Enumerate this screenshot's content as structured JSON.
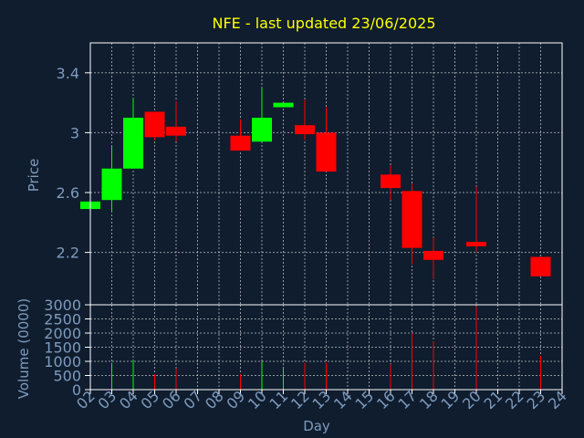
{
  "colors": {
    "background": "#0f1d2e",
    "title": "#ffff00",
    "axis_text": "#7f9bbf",
    "frame": "#ffffff",
    "grid": "#ffffff",
    "up": "#00ff00",
    "down": "#ff0000"
  },
  "chart_data": [
    {
      "type": "candlestick",
      "title": "NFE - last updated 23/06/2025",
      "ylabel": "Price",
      "ylim": [
        1.85,
        3.6
      ],
      "yticks": [
        "2.2",
        "2.6",
        "3",
        "3.4"
      ],
      "ytick_values": [
        2.2,
        2.6,
        3.0,
        3.4
      ],
      "grid": true,
      "candles": [
        {
          "x": "02",
          "open": 2.49,
          "close": 2.54,
          "high": 2.54,
          "low": 2.49
        },
        {
          "x": "03",
          "open": 2.55,
          "close": 2.76,
          "high": 2.91,
          "low": 2.47
        },
        {
          "x": "04",
          "open": 2.76,
          "close": 3.1,
          "high": 3.23,
          "low": 2.76
        },
        {
          "x": "05",
          "open": 3.14,
          "close": 2.97,
          "high": 3.14,
          "low": 2.95
        },
        {
          "x": "06",
          "open": 3.04,
          "close": 2.98,
          "high": 3.21,
          "low": 2.94
        },
        {
          "x": "09",
          "open": 2.98,
          "close": 2.88,
          "high": 3.09,
          "low": 2.88
        },
        {
          "x": "10",
          "open": 2.94,
          "close": 3.1,
          "high": 3.3,
          "low": 2.94
        },
        {
          "x": "11",
          "open": 3.17,
          "close": 3.2,
          "high": 3.21,
          "low": 3.17
        },
        {
          "x": "12",
          "open": 3.05,
          "close": 2.99,
          "high": 3.22,
          "low": 2.95
        },
        {
          "x": "13",
          "open": 3.0,
          "close": 2.74,
          "high": 3.17,
          "low": 2.74
        },
        {
          "x": "16",
          "open": 2.72,
          "close": 2.63,
          "high": 2.78,
          "low": 2.55
        },
        {
          "x": "17",
          "open": 2.61,
          "close": 2.23,
          "high": 2.66,
          "low": 2.12
        },
        {
          "x": "18",
          "open": 2.21,
          "close": 2.15,
          "high": 2.3,
          "low": 2.02
        },
        {
          "x": "20",
          "open": 2.27,
          "close": 2.24,
          "high": 2.64,
          "low": 2.2
        },
        {
          "x": "23",
          "open": 2.17,
          "close": 2.04,
          "high": 2.17,
          "low": 2.04
        }
      ]
    },
    {
      "type": "bar",
      "ylabel": "Volume (0000)",
      "xlabel": "Day",
      "ylim": [
        0,
        3000
      ],
      "yticks": [
        "0",
        "500",
        "1000",
        "1500",
        "2000",
        "2500",
        "3000"
      ],
      "ytick_values": [
        0,
        500,
        1000,
        1500,
        2000,
        2500,
        3000
      ],
      "grid": true,
      "categories": [
        "02",
        "03",
        "04",
        "05",
        "06",
        "07",
        "08",
        "09",
        "10",
        "11",
        "12",
        "13",
        "14",
        "15",
        "16",
        "17",
        "18",
        "19",
        "20",
        "21",
        "22",
        "23",
        "24"
      ],
      "bars": [
        {
          "x": "02",
          "value": 100,
          "dir": "up"
        },
        {
          "x": "03",
          "value": 950,
          "dir": "up"
        },
        {
          "x": "04",
          "value": 1050,
          "dir": "up"
        },
        {
          "x": "05",
          "value": 550,
          "dir": "down"
        },
        {
          "x": "06",
          "value": 750,
          "dir": "down"
        },
        {
          "x": "09",
          "value": 550,
          "dir": "down"
        },
        {
          "x": "10",
          "value": 1000,
          "dir": "up"
        },
        {
          "x": "11",
          "value": 750,
          "dir": "up"
        },
        {
          "x": "12",
          "value": 950,
          "dir": "down"
        },
        {
          "x": "13",
          "value": 950,
          "dir": "down"
        },
        {
          "x": "16",
          "value": 900,
          "dir": "down"
        },
        {
          "x": "17",
          "value": 2000,
          "dir": "down"
        },
        {
          "x": "18",
          "value": 1700,
          "dir": "down"
        },
        {
          "x": "20",
          "value": 2950,
          "dir": "down"
        },
        {
          "x": "23",
          "value": 1200,
          "dir": "down"
        }
      ]
    }
  ]
}
